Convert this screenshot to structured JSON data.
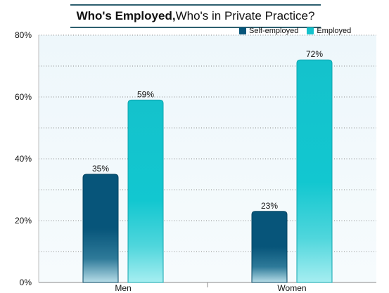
{
  "chart_data": {
    "type": "bar",
    "title_bold": "Who's Employed,",
    "title_rest": " Who's in Private Practice?",
    "categories": [
      "Men",
      "Women"
    ],
    "series": [
      {
        "name": "Self-employed",
        "values": [
          35,
          23
        ],
        "labels": [
          "35%",
          "23%"
        ],
        "color": "#07557a"
      },
      {
        "name": "Employed",
        "values": [
          59,
          72
        ],
        "labels": [
          "59%",
          "72%"
        ],
        "color": "#14c2cc"
      }
    ],
    "ylim": [
      0,
      80
    ],
    "yticks": [
      0,
      20,
      40,
      60,
      80
    ],
    "ytick_labels": [
      "0%",
      "20%",
      "40%",
      "60%",
      "80%"
    ],
    "grid": true,
    "legend_position": "top-right"
  }
}
